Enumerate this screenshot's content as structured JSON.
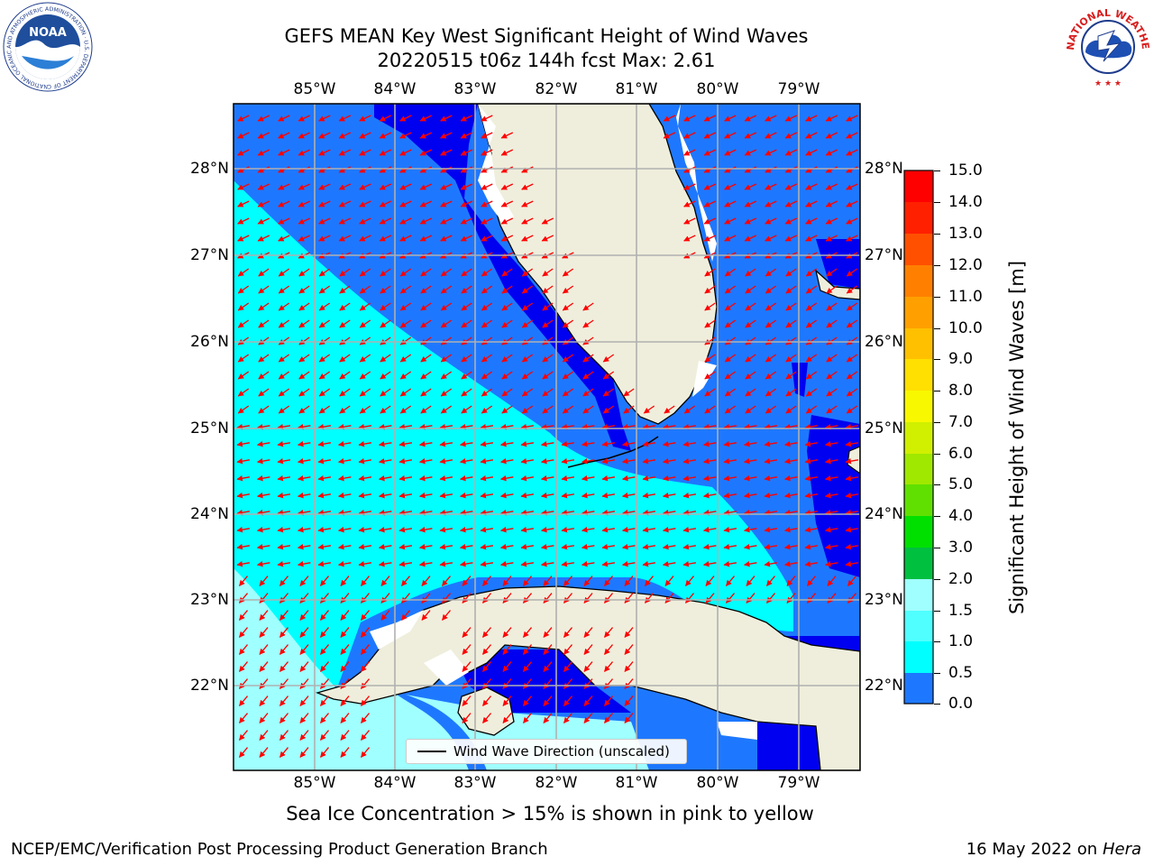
{
  "header": {
    "title_line1": "GEFS MEAN Key West Significant Height of Wind Waves",
    "title_line2": "20220515 t06z 144h fcst   Max: 2.61"
  },
  "map": {
    "lon_labels": [
      "85°W",
      "84°W",
      "83°W",
      "82°W",
      "81°W",
      "80°W",
      "79°W"
    ],
    "lat_labels": [
      "28°N",
      "27°N",
      "26°N",
      "25°N",
      "24°N",
      "23°N",
      "22°N"
    ],
    "legend_label": "Wind Wave Direction (unscaled)",
    "colors": {
      "deep_blue": "#0000f0",
      "blue": "#1e78ff",
      "cyan": "#00ffff",
      "pale_cyan": "#a0ffff",
      "land": "#efeedc",
      "arrow": "#ff0000",
      "grid": "#b0b0b0"
    }
  },
  "colorbar": {
    "title": "Significant Height of Wind Waves [m]",
    "tick_labels": [
      "15.0",
      "14.0",
      "13.0",
      "12.0",
      "11.0",
      "10.0",
      "9.0",
      "8.0",
      "7.0",
      "6.0",
      "5.0",
      "4.0",
      "3.0",
      "2.0",
      "1.5",
      "1.0",
      "0.5",
      "0.0"
    ],
    "segments": [
      "#ff0000",
      "#ff2000",
      "#ff5000",
      "#ff8000",
      "#ffa000",
      "#ffc000",
      "#ffe000",
      "#f8f800",
      "#d0f000",
      "#a0e800",
      "#60e000",
      "#00e000",
      "#00c040",
      "#40ff80",
      "#a0ffff",
      "#50ffff",
      "#00ffff",
      "#1e78ff",
      "#0000f0"
    ]
  },
  "notes": {
    "ice": "Sea Ice Concentration > 15% is shown in pink to yellow"
  },
  "footer": {
    "left": "NCEP/EMC/Verification Post Processing Product Generation Branch",
    "date": "16 May 2022 on",
    "machine": "Hera"
  },
  "logos": {
    "left_icon": "noaa-logo",
    "right_icon": "national-weather-service-logo",
    "noaa_text": "NOAA",
    "noaa_ring_text": "NATIONAL OCEANIC AND ATMOSPHERIC ADMINISTRATION · U.S. DEPARTMENT OF COMMERCE",
    "nws_ring_text": "NATIONAL WEATHER SERVICE"
  }
}
